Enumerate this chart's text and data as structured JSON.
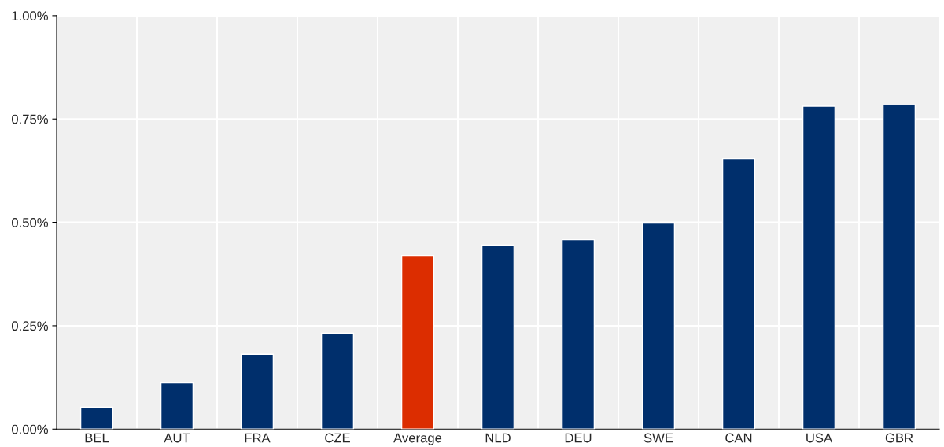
{
  "chart_data": {
    "type": "bar",
    "categories": [
      "BEL",
      "AUT",
      "FRA",
      "CZE",
      "Average",
      "NLD",
      "DEU",
      "SWE",
      "CAN",
      "USA",
      "GBR"
    ],
    "values": [
      0.053,
      0.112,
      0.181,
      0.232,
      0.42,
      0.445,
      0.458,
      0.498,
      0.654,
      0.781,
      0.785
    ],
    "colors": [
      "#002f6c",
      "#002f6c",
      "#002f6c",
      "#002f6c",
      "#dc2d00",
      "#002f6c",
      "#002f6c",
      "#002f6c",
      "#002f6c",
      "#002f6c",
      "#002f6c"
    ],
    "ylim": [
      0,
      1
    ],
    "yticks": [
      {
        "value": 0,
        "label": "0.00%"
      },
      {
        "value": 0.25,
        "label": "0.25%"
      },
      {
        "value": 0.5,
        "label": "0.50%"
      },
      {
        "value": 0.75,
        "label": "0.75%"
      },
      {
        "value": 1,
        "label": "1.00%"
      }
    ],
    "grid": true
  }
}
